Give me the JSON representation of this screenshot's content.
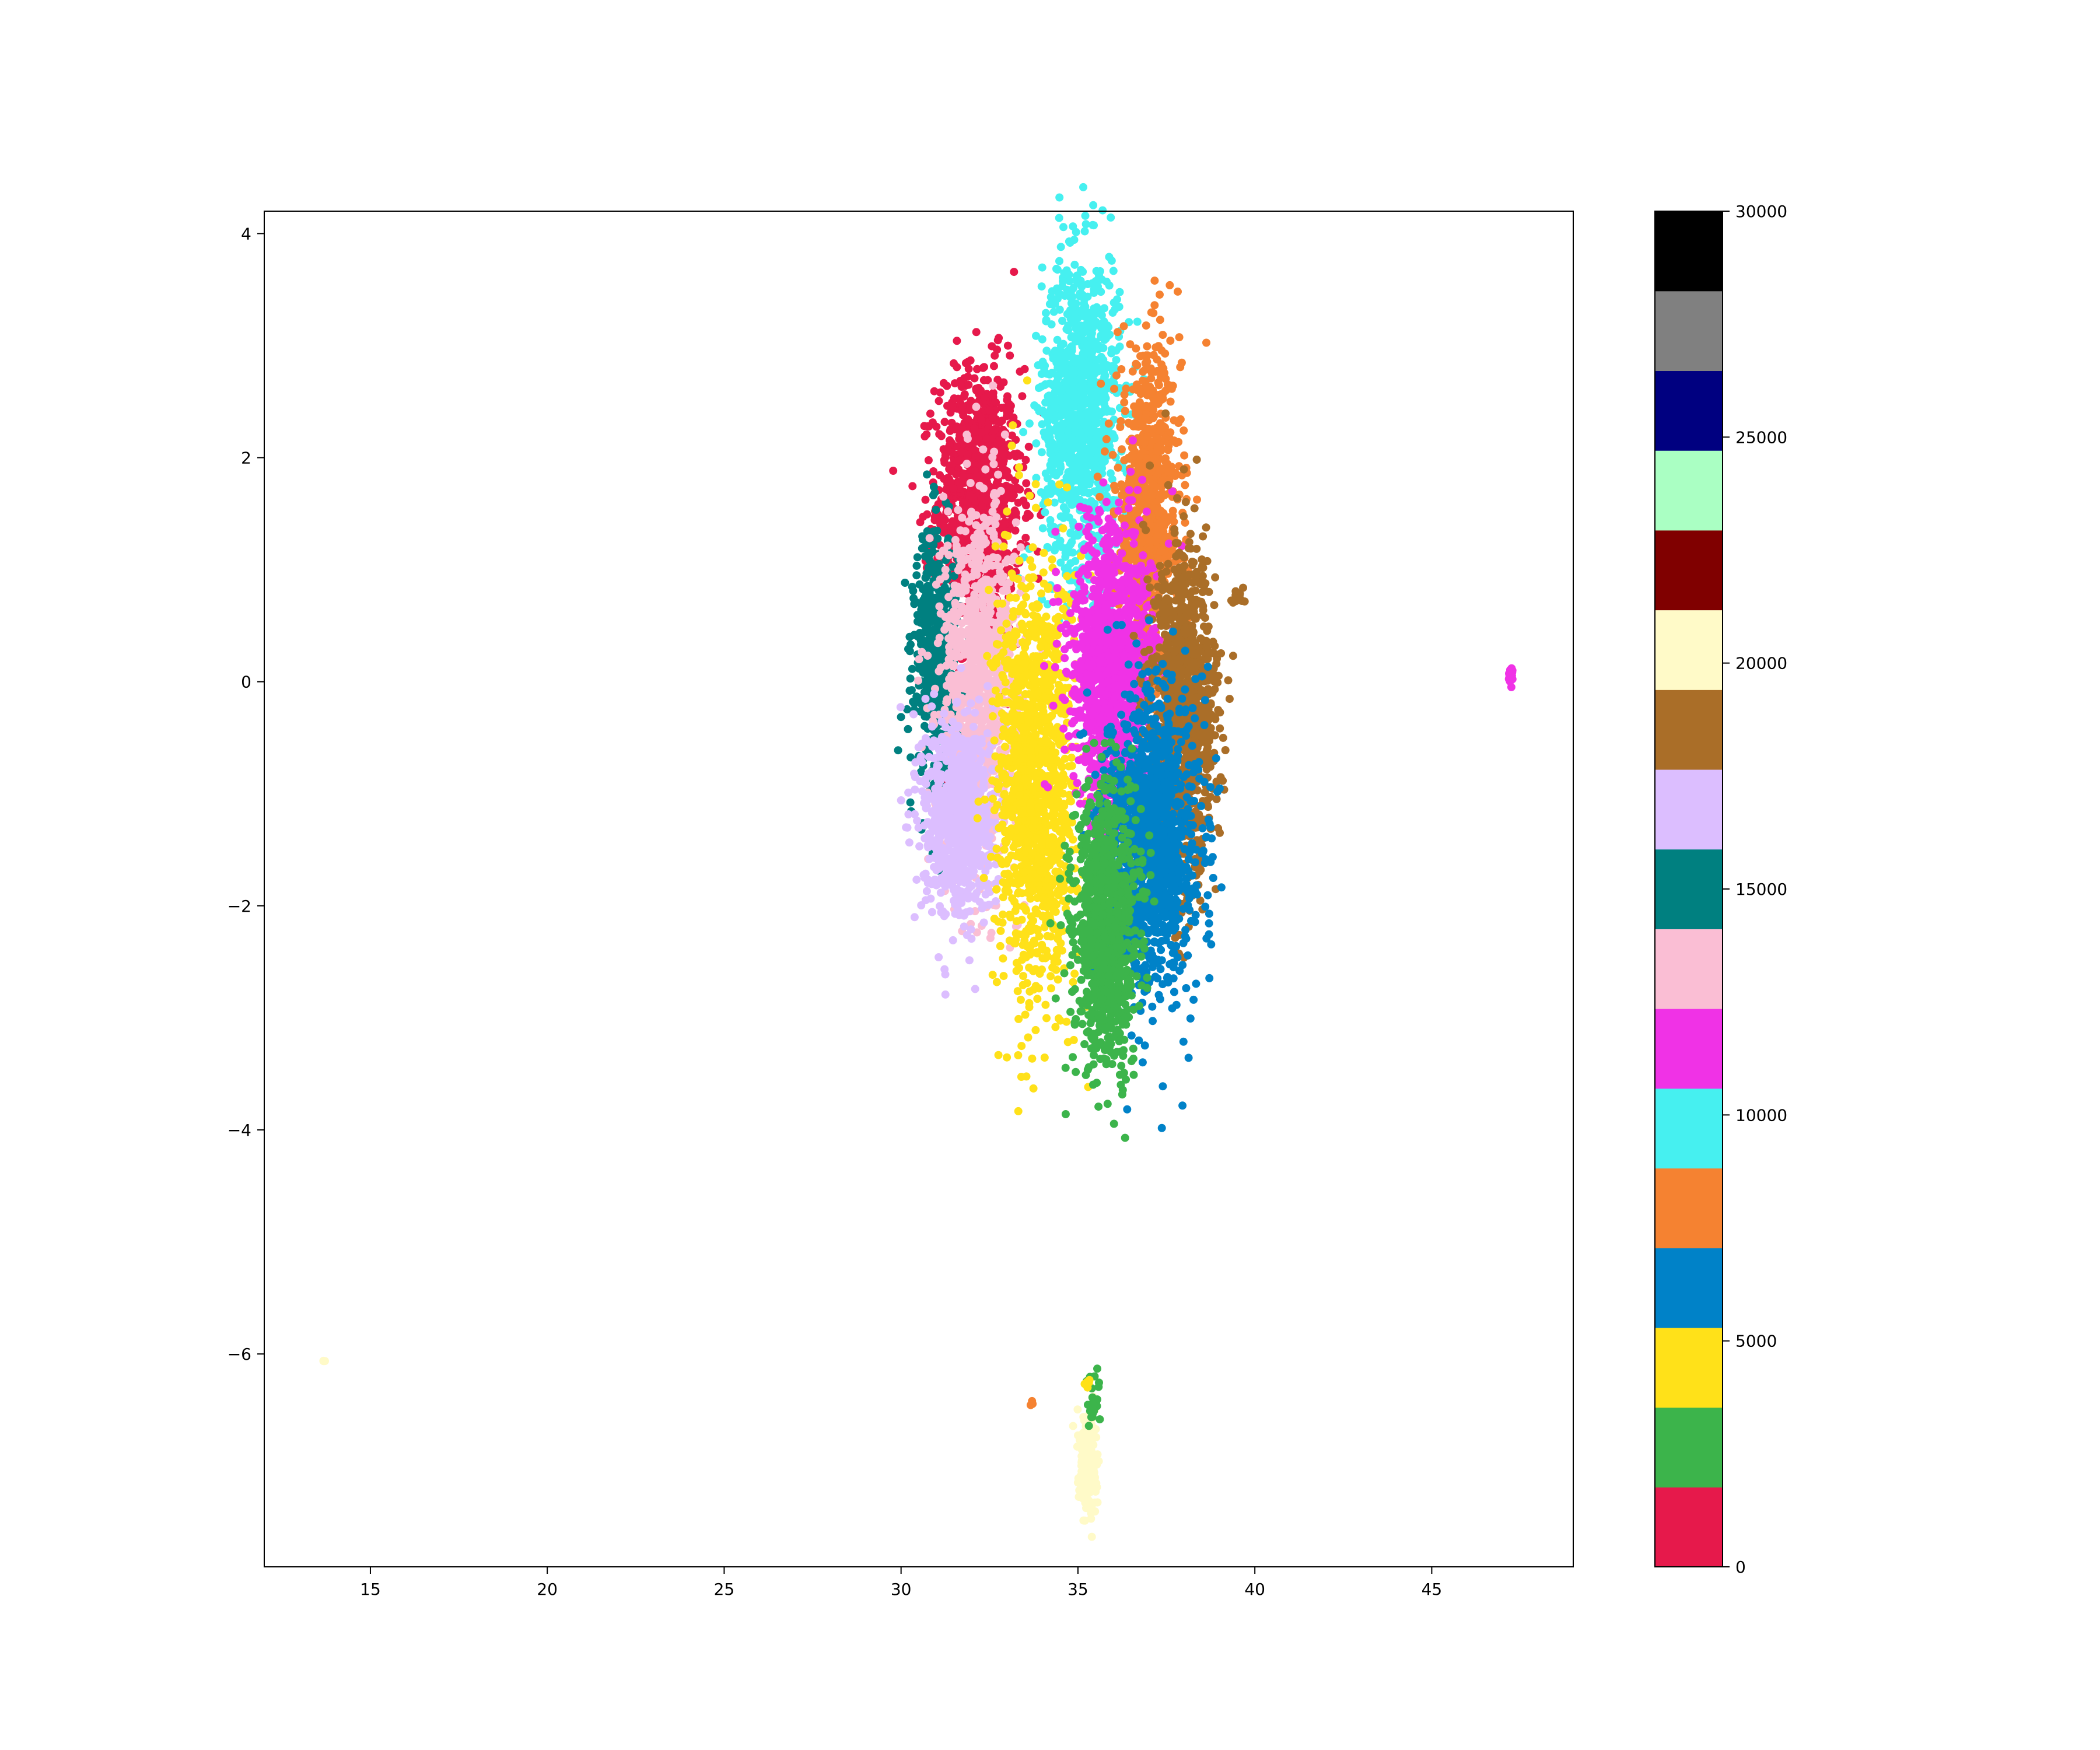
{
  "chart_data": {
    "type": "scatter",
    "title": "",
    "xlabel": "",
    "ylabel": "",
    "xlim": [
      12,
      49
    ],
    "ylim": [
      -7.9,
      4.2
    ],
    "grid": false,
    "x_ticks": [
      15,
      20,
      25,
      30,
      35,
      40,
      45
    ],
    "y_ticks": [
      4,
      2,
      0,
      -2,
      -4,
      -6
    ],
    "x_tick_labels": [
      "15",
      "20",
      "25",
      "30",
      "35",
      "40",
      "45"
    ],
    "y_tick_labels": [
      "4",
      "2",
      "0",
      "−2",
      "−4",
      "−6"
    ],
    "colorbar": {
      "range": [
        0,
        30000
      ],
      "tick_values": [
        0,
        5000,
        10000,
        15000,
        20000,
        25000,
        30000
      ],
      "tick_labels": [
        "0",
        "5000",
        "10000",
        "15000",
        "20000",
        "25000",
        "30000"
      ],
      "colors": [
        "#e6194b",
        "#3cb44b",
        "#ffe119",
        "#0082c8",
        "#f58231",
        "#46f0f0",
        "#f032e6",
        "#fabed4",
        "#008080",
        "#dcbeff",
        "#aa6e28",
        "#fffac8",
        "#800000",
        "#aaffc3",
        "#000080",
        "#808080",
        "#000000"
      ]
    },
    "clusters": [
      {
        "color": "#e6194b",
        "center": [
          32.2,
          1.6
        ],
        "spread": [
          0.6,
          0.6
        ],
        "count": 1100
      },
      {
        "color": "#46f0f0",
        "center": [
          35.1,
          2.4
        ],
        "spread": [
          0.55,
          0.7
        ],
        "count": 1100
      },
      {
        "color": "#f58231",
        "center": [
          37.0,
          1.5
        ],
        "spread": [
          0.45,
          0.7
        ],
        "count": 900
      },
      {
        "color": "#008080",
        "center": [
          31.0,
          0.2
        ],
        "spread": [
          0.3,
          0.55
        ],
        "count": 650
      },
      {
        "color": "#fabed4",
        "center": [
          32.2,
          0.0
        ],
        "spread": [
          0.55,
          0.8
        ],
        "count": 1000
      },
      {
        "color": "#dcbeff",
        "center": [
          31.6,
          -1.2
        ],
        "spread": [
          0.5,
          0.45
        ],
        "count": 800
      },
      {
        "color": "#ffe119",
        "center": [
          33.8,
          -0.9
        ],
        "spread": [
          0.55,
          0.95
        ],
        "count": 1300
      },
      {
        "color": "#f032e6",
        "center": [
          36.0,
          0.1
        ],
        "spread": [
          0.6,
          0.65
        ],
        "count": 1300
      },
      {
        "color": "#aa6e28",
        "center": [
          38.0,
          -0.3
        ],
        "spread": [
          0.45,
          0.7
        ],
        "count": 1200
      },
      {
        "color": "#0082c8",
        "center": [
          37.1,
          -1.4
        ],
        "spread": [
          0.65,
          0.65
        ],
        "count": 1300
      },
      {
        "color": "#3cb44b",
        "center": [
          35.8,
          -2.2
        ],
        "spread": [
          0.45,
          0.6
        ],
        "count": 1000
      },
      {
        "color": "#fffac8",
        "center": [
          35.3,
          -6.95
        ],
        "spread": [
          0.12,
          0.22
        ],
        "count": 220
      },
      {
        "color": "#f032e6",
        "center": [
          47.25,
          0.05
        ],
        "spread": [
          0.03,
          0.04
        ],
        "count": 25
      },
      {
        "color": "#3cb44b",
        "center": [
          35.45,
          -6.4
        ],
        "spread": [
          0.08,
          0.15
        ],
        "count": 25
      },
      {
        "color": "#ffe119",
        "center": [
          35.3,
          -6.3
        ],
        "spread": [
          0.05,
          0.05
        ],
        "count": 6
      },
      {
        "color": "#f58231",
        "center": [
          33.7,
          -6.45
        ],
        "spread": [
          0.04,
          0.04
        ],
        "count": 4
      },
      {
        "color": "#aa6e28",
        "center": [
          39.5,
          0.75
        ],
        "spread": [
          0.15,
          0.04
        ],
        "count": 12
      },
      {
        "color": "#fffac8",
        "center": [
          13.7,
          -6.05
        ],
        "spread": [
          0.03,
          0.02
        ],
        "count": 3
      }
    ]
  }
}
